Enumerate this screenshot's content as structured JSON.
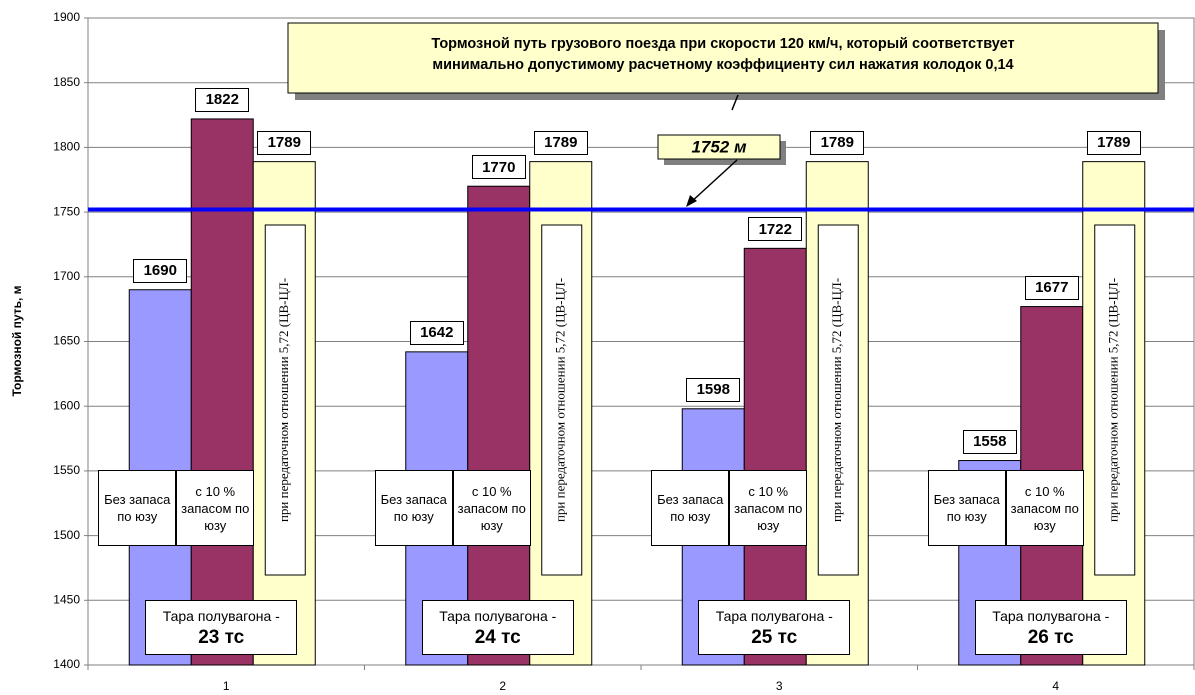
{
  "chart_data": {
    "type": "bar",
    "title": [
      "Тормозной путь грузового поезда при скорости 120 км/ч, который соответствует",
      "минимально допустимому расчетному коэффициенту сил нажатия колодок 0,14"
    ],
    "ylabel": "Тормозной путь, м",
    "categories": [
      "1",
      "2",
      "3",
      "4"
    ],
    "series": [
      {
        "name": "Без запаса по юзу",
        "color": "#9999ff",
        "values": [
          1690,
          1642,
          1598,
          1558
        ]
      },
      {
        "name": "с 10 % запасом по юзу",
        "color": "#993366",
        "values": [
          1822,
          1770,
          1722,
          1677
        ]
      },
      {
        "name": "при передаточном отношении 5,72 (ЦВ-ЦЛ-",
        "color": "#ffffcc",
        "values": [
          1789,
          1789,
          1789,
          1789
        ]
      }
    ],
    "group_labels": [
      {
        "caption": "Тара полувагона -",
        "value": "23 тс"
      },
      {
        "caption": "Тара полувагона -",
        "value": "24 тс"
      },
      {
        "caption": "Тара полувагона -",
        "value": "25 тс"
      },
      {
        "caption": "Тара полувагона -",
        "value": "26 тс"
      }
    ],
    "reference_line": {
      "value": 1752,
      "label": "1752 м",
      "color": "#0000ff"
    },
    "ylim": [
      1400,
      1900
    ],
    "yticks": [
      1400,
      1450,
      1500,
      1550,
      1600,
      1650,
      1700,
      1750,
      1800,
      1850,
      1900
    ],
    "grid": true
  }
}
